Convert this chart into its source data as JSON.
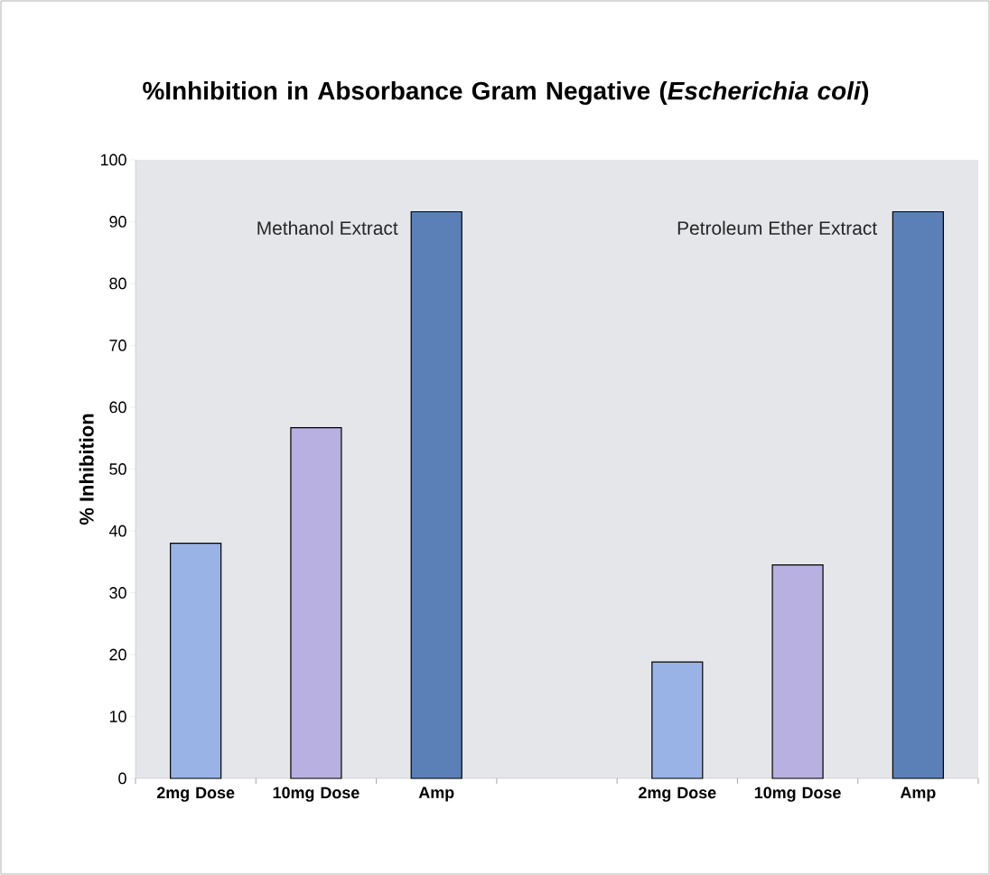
{
  "chart_data": {
    "type": "bar",
    "title": "%Inhibition in Absorbance Gram Negative (*Escherichia coli*)",
    "ylabel": "% Inhibition",
    "categories": [
      "2mg Dose",
      "10mg Dose",
      "Amp",
      null,
      "2mg Dose",
      "10mg Dose",
      "Amp"
    ],
    "values": [
      38,
      56.7,
      91.6,
      null,
      18.8,
      34.5,
      91.6
    ],
    "colors": [
      "#99b3e6",
      "#b8b0e0",
      "#5b80b8",
      "#5b80b8",
      "#99b3e6",
      "#b8b0e0",
      "#5b80b8"
    ],
    "ylim": [
      0,
      100
    ],
    "yticks": [
      0,
      10,
      20,
      30,
      40,
      50,
      60,
      70,
      80,
      90,
      100
    ],
    "annotations": [
      "Methanol Extract",
      "Petroleum Ether Extract"
    ],
    "grid": false
  }
}
